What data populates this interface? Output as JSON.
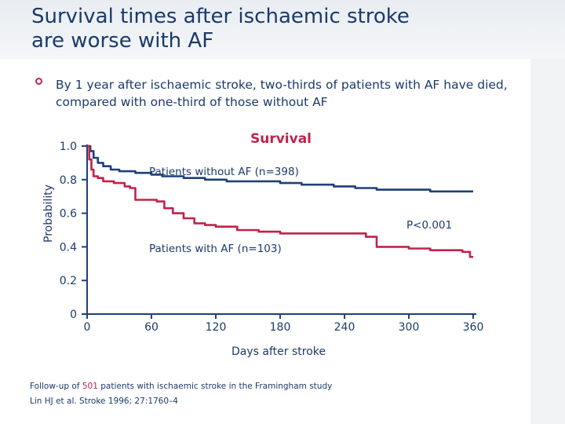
{
  "slide": {
    "title_line1": "Survival times after ischaemic stroke",
    "title_line2": "are worse with AF",
    "bullet": "By 1 year after ischaemic stroke, two-thirds of patients with AF have died, compared with one-third of those without AF"
  },
  "footnote": {
    "line1_pre": "Follow-up of ",
    "line1_number": "501",
    "line1_post": " patients with ischaemic stroke in the Framingham study",
    "line2": "Lin HJ et al. Stroke 1996; 27:1760–4"
  },
  "chart_data": {
    "type": "line",
    "step": true,
    "title": "Survival",
    "xlabel": "Days after stroke",
    "ylabel": "Probability",
    "xlim": [
      0,
      360
    ],
    "ylim": [
      0,
      1.0
    ],
    "x_ticks": [
      0,
      60,
      120,
      180,
      240,
      300,
      360
    ],
    "y_ticks": [
      0,
      0.2,
      0.4,
      0.6,
      0.8,
      1.0
    ],
    "y_tick_labels": [
      "0",
      "0.2",
      "0.4",
      "0.6",
      "0.8",
      "1.0"
    ],
    "annotations": [
      {
        "text": "P<0.001"
      }
    ],
    "series": [
      {
        "name": "Patients without AF (n=398)",
        "color": "#1f3f7a",
        "points": [
          [
            0,
            1.0
          ],
          [
            3,
            0.97
          ],
          [
            6,
            0.93
          ],
          [
            10,
            0.9
          ],
          [
            15,
            0.88
          ],
          [
            22,
            0.86
          ],
          [
            30,
            0.85
          ],
          [
            45,
            0.84
          ],
          [
            60,
            0.83
          ],
          [
            70,
            0.82
          ],
          [
            90,
            0.81
          ],
          [
            110,
            0.8
          ],
          [
            130,
            0.79
          ],
          [
            160,
            0.79
          ],
          [
            180,
            0.78
          ],
          [
            200,
            0.77
          ],
          [
            230,
            0.76
          ],
          [
            250,
            0.75
          ],
          [
            270,
            0.74
          ],
          [
            320,
            0.73
          ],
          [
            360,
            0.73
          ]
        ]
      },
      {
        "name": "Patients with AF (n=103)",
        "color": "#c0234a",
        "points": [
          [
            0,
            1.0
          ],
          [
            2,
            0.92
          ],
          [
            4,
            0.86
          ],
          [
            6,
            0.82
          ],
          [
            10,
            0.81
          ],
          [
            15,
            0.79
          ],
          [
            25,
            0.78
          ],
          [
            35,
            0.76
          ],
          [
            40,
            0.75
          ],
          [
            45,
            0.68
          ],
          [
            65,
            0.67
          ],
          [
            72,
            0.63
          ],
          [
            80,
            0.6
          ],
          [
            90,
            0.57
          ],
          [
            100,
            0.54
          ],
          [
            110,
            0.53
          ],
          [
            120,
            0.52
          ],
          [
            140,
            0.5
          ],
          [
            160,
            0.49
          ],
          [
            180,
            0.48
          ],
          [
            230,
            0.48
          ],
          [
            260,
            0.46
          ],
          [
            270,
            0.4
          ],
          [
            300,
            0.39
          ],
          [
            320,
            0.38
          ],
          [
            350,
            0.37
          ],
          [
            357,
            0.34
          ],
          [
            360,
            0.34
          ]
        ]
      }
    ]
  }
}
